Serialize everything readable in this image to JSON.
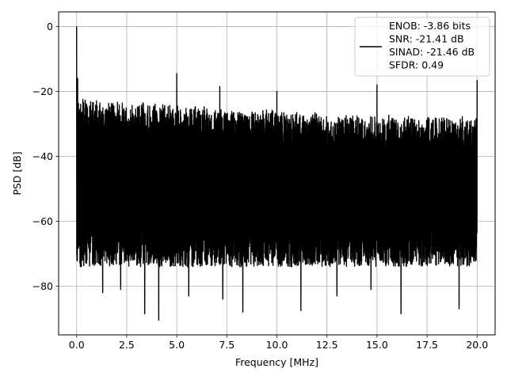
{
  "chart_data": {
    "type": "line",
    "title": "",
    "xlabel": "Frequency [MHz]",
    "ylabel": "PSD [dB]",
    "xlim": [
      -0.9,
      20.9
    ],
    "ylim": [
      -95,
      4.5
    ],
    "xticks": [
      0.0,
      2.5,
      5.0,
      7.5,
      10.0,
      12.5,
      15.0,
      17.5,
      20.0
    ],
    "xtick_labels": [
      "0.0",
      "2.5",
      "5.0",
      "7.5",
      "10.0",
      "12.5",
      "15.0",
      "17.5",
      "20.0"
    ],
    "yticks": [
      0,
      -20,
      -40,
      -60,
      -80
    ],
    "ytick_labels": [
      "0",
      "−20",
      "−40",
      "−60",
      "−80"
    ],
    "grid": true,
    "legend_position": "top-right",
    "series": [
      {
        "name": "ENOB: -3.86 bits\nSNR: -21.41 dB\nSINAD: -21.46 dB\nSFDR: 0.49",
        "color": "#000000",
        "x_range": [
          0.0,
          20.0
        ],
        "noise_ceiling": [
          [
            0.0,
            -24.0
          ],
          [
            2.5,
            -25.0
          ],
          [
            5.0,
            -26.0
          ],
          [
            7.5,
            -27.0
          ],
          [
            10.0,
            -27.5
          ],
          [
            12.5,
            -28.5
          ],
          [
            15.0,
            -29.0
          ],
          [
            17.5,
            -29.5
          ],
          [
            20.0,
            -29.5
          ]
        ],
        "noise_floor_typical": -70,
        "spikes": [
          {
            "x": 0.0,
            "y": 0.0
          },
          {
            "x": 0.05,
            "y": -16.0
          },
          {
            "x": 5.0,
            "y": -14.5
          },
          {
            "x": 7.15,
            "y": -18.5
          },
          {
            "x": 10.0,
            "y": -20.0
          },
          {
            "x": 15.0,
            "y": -18.0
          },
          {
            "x": 20.0,
            "y": -16.5
          }
        ],
        "deep_dips": [
          {
            "x": 1.3,
            "y": -82.0
          },
          {
            "x": 2.2,
            "y": -81.0
          },
          {
            "x": 3.4,
            "y": -88.5
          },
          {
            "x": 4.1,
            "y": -90.5
          },
          {
            "x": 5.6,
            "y": -83.0
          },
          {
            "x": 7.3,
            "y": -84.0
          },
          {
            "x": 8.3,
            "y": -88.0
          },
          {
            "x": 11.2,
            "y": -87.5
          },
          {
            "x": 13.0,
            "y": -83.0
          },
          {
            "x": 14.7,
            "y": -81.0
          },
          {
            "x": 16.2,
            "y": -88.5
          },
          {
            "x": 19.1,
            "y": -87.0
          }
        ]
      }
    ]
  }
}
